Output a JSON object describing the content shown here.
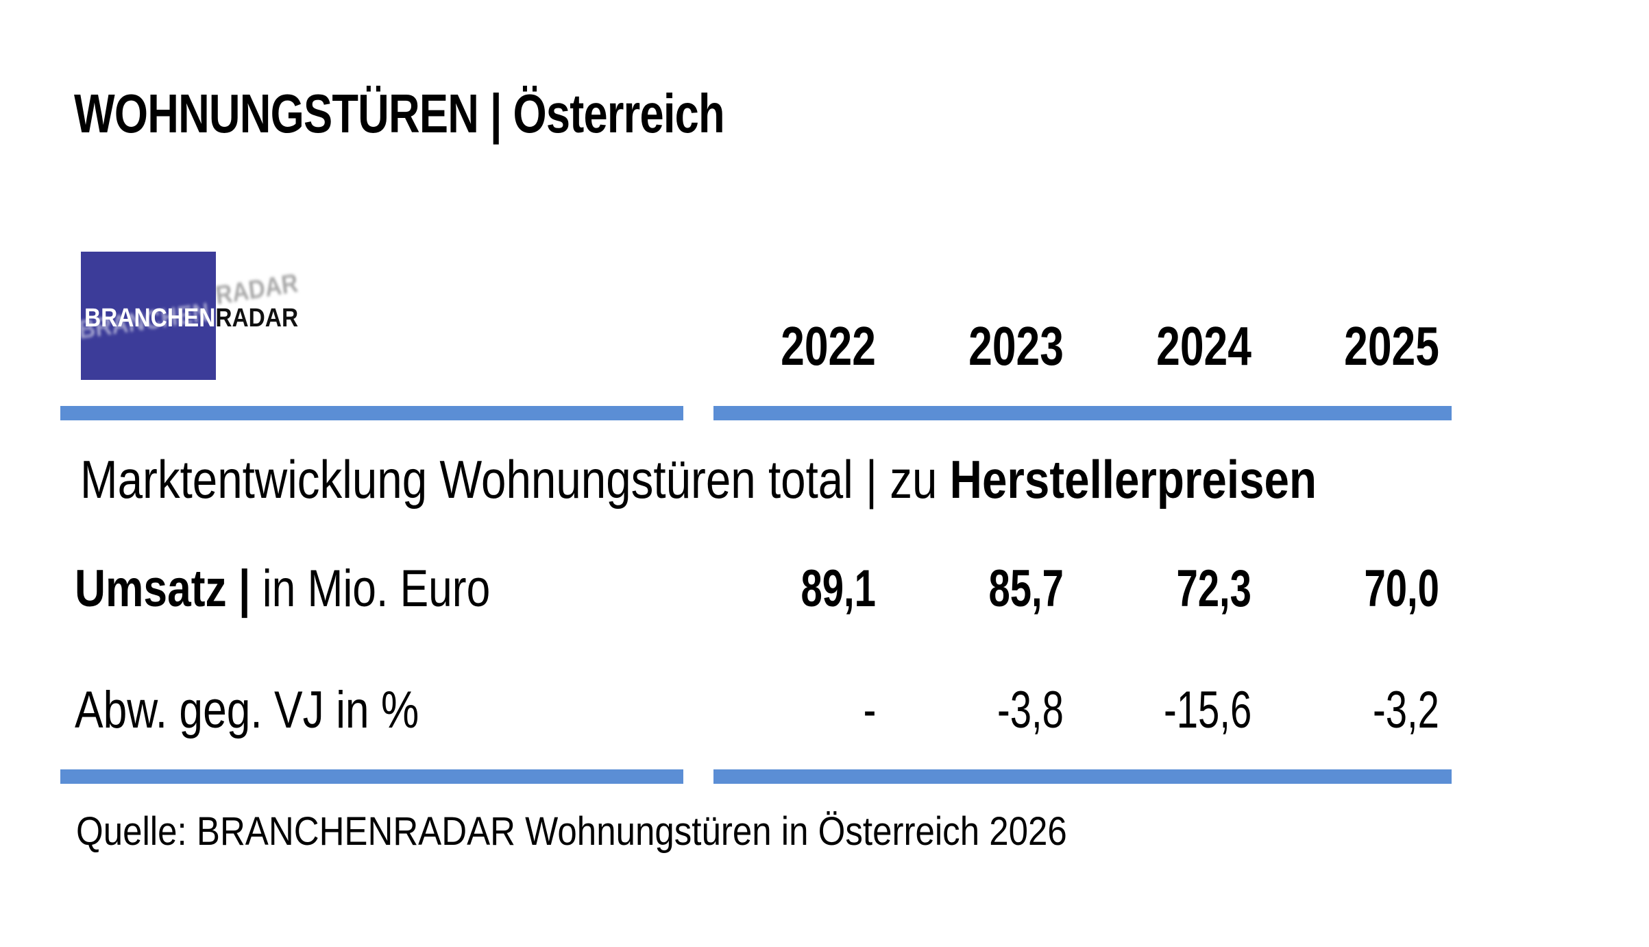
{
  "header": {
    "title": "WOHNUNGSTÜREN | Österreich"
  },
  "logo": {
    "text_primary": "BRANCHEN",
    "text_secondary": "RADAR",
    "square_color": "#3c3c99"
  },
  "colors": {
    "accent_bar": "#5b8ed5",
    "text": "#000000",
    "background": "#ffffff"
  },
  "table": {
    "years": [
      "2022",
      "2023",
      "2024",
      "2025"
    ],
    "section_title_regular": "Marktentwicklung Wohnungstüren total | zu ",
    "section_title_bold": "Herstellerpreisen",
    "rows": [
      {
        "label_strong": "Umsatz |",
        "label_rest": " in Mio. Euro",
        "values": [
          "89,1",
          "85,7",
          "72,3",
          "70,0"
        ]
      },
      {
        "label_strong": "",
        "label_rest": "Abw. geg. VJ in %",
        "values": [
          "-",
          "-3,8",
          "-15,6",
          "-3,2"
        ]
      }
    ]
  },
  "source": "Quelle: BRANCHENRADAR Wohnungstüren in Österreich 2026",
  "chart_data": {
    "type": "table",
    "title": "Marktentwicklung Wohnungstüren total | zu Herstellerpreisen",
    "categories": [
      "2022",
      "2023",
      "2024",
      "2025"
    ],
    "series": [
      {
        "name": "Umsatz | in Mio. Euro",
        "values": [
          89.1,
          85.7,
          72.3,
          70.0
        ]
      },
      {
        "name": "Abw. geg. VJ in %",
        "values": [
          null,
          -3.8,
          -15.6,
          -3.2
        ]
      }
    ],
    "source": "Quelle: BRANCHENRADAR Wohnungstüren in Österreich 2026",
    "legend_position": "none",
    "grid": false
  }
}
